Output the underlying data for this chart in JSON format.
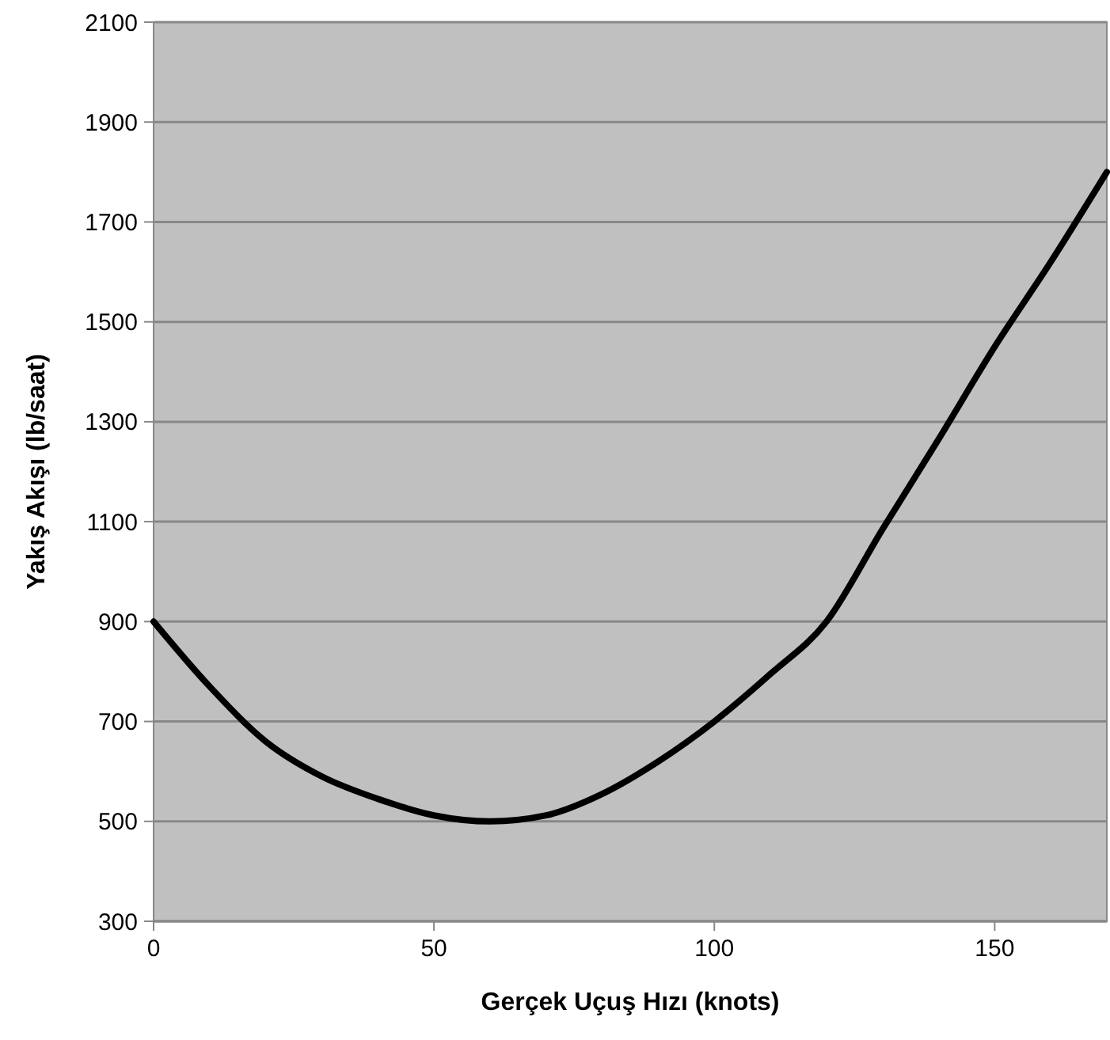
{
  "chart_data": {
    "type": "line",
    "xlabel": "Gerçek Uçuş Hızı (knots)",
    "ylabel": "Yakış Akışı (lb/saat)",
    "x": [
      0,
      10,
      20,
      30,
      40,
      50,
      60,
      70,
      80,
      90,
      100,
      110,
      120,
      130,
      140,
      150,
      160,
      170
    ],
    "series": [
      {
        "color": "#000000",
        "values": [
          900,
          770,
          660,
          590,
          545,
          512,
          500,
          512,
          555,
          620,
          700,
          795,
          900,
          1085,
          1265,
          1450,
          1620,
          1800
        ]
      }
    ],
    "xlim": [
      0,
      170
    ],
    "xticks": [
      0,
      50,
      100,
      150
    ],
    "ylim": [
      300,
      2100
    ],
    "yticks": [
      300,
      500,
      700,
      900,
      1100,
      1300,
      1500,
      1700,
      1900,
      2100
    ],
    "grid": "y",
    "marker": "none",
    "line_style": "solid"
  }
}
